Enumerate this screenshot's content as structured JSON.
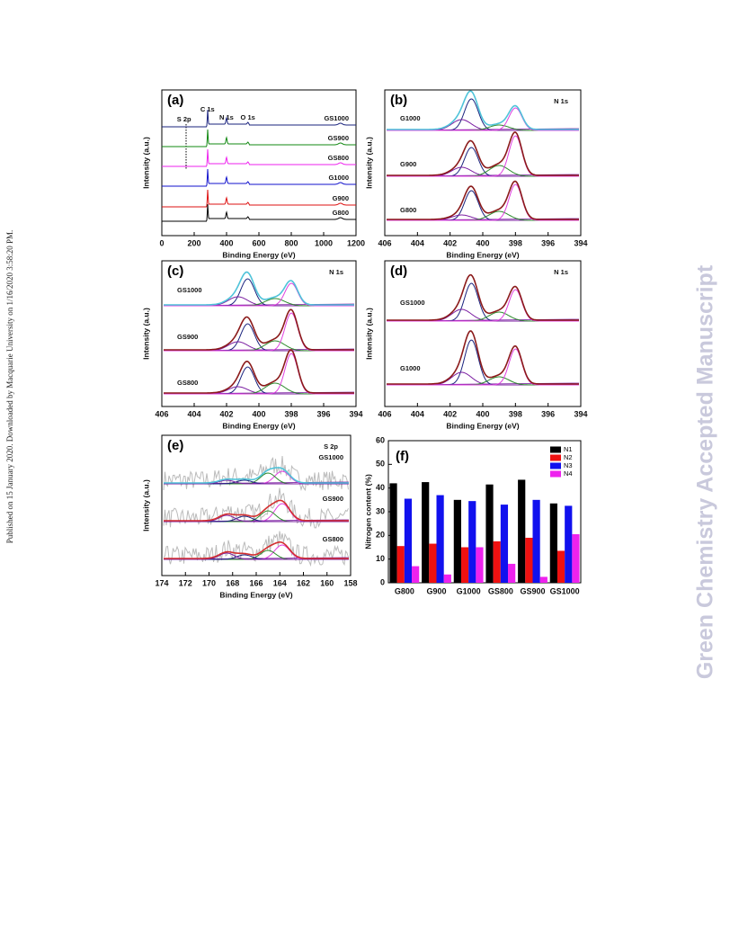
{
  "side_note": "Published on 15 January 2020. Downloaded by Macquarie University on 1/16/2020 3:58:20 PM.",
  "watermark": "Green Chemistry Accepted Manuscript",
  "panels": [
    {
      "label": "(a)",
      "xlabel": "Binding Energy (eV)",
      "ylabel": "Intensity (a.u.)",
      "xlim": [
        0,
        1200
      ],
      "xticks": [
        0,
        200,
        400,
        600,
        800,
        1000,
        1200
      ],
      "peaks": [
        "S 2p",
        "C 1s",
        "N 1s",
        "O 1s"
      ],
      "traces": [
        "GS1000",
        "GS900",
        "GS800",
        "G1000",
        "G900",
        "G800"
      ]
    },
    {
      "label": "(b)",
      "title": "N 1s",
      "xlabel": "Binding Energy (eV)",
      "ylabel": "Intensity (a.u.)",
      "xlim": [
        406,
        394
      ],
      "xticks": [
        406,
        404,
        402,
        400,
        398,
        396,
        394
      ],
      "traces": [
        "G1000",
        "G900",
        "G800"
      ]
    },
    {
      "label": "(c)",
      "title": "N 1s",
      "xlabel": "Binding Energy (eV)",
      "ylabel": "Intensity (a.u.)",
      "xlim": [
        406,
        394
      ],
      "xticks": [
        406,
        404,
        402,
        400,
        398,
        396,
        394
      ],
      "traces": [
        "GS1000",
        "GS900",
        "GS800"
      ]
    },
    {
      "label": "(d)",
      "title": "N 1s",
      "xlabel": "Binding Energy (eV)",
      "ylabel": "Intensity (a.u.)",
      "xlim": [
        406,
        394
      ],
      "xticks": [
        406,
        404,
        402,
        400,
        398,
        396,
        394
      ],
      "traces": [
        "GS1000",
        "G1000"
      ]
    },
    {
      "label": "(e)",
      "title": "S 2p",
      "xlabel": "Binding Energy (eV)",
      "ylabel": "Intensity (a.u.)",
      "xlim": [
        174,
        158
      ],
      "xticks": [
        174,
        172,
        170,
        168,
        166,
        164,
        162,
        160,
        158
      ],
      "traces": [
        "GS1000",
        "GS900",
        "GS800"
      ]
    }
  ],
  "bar_panel": {
    "type": "bar",
    "label": "(f)",
    "ylabel": "Nitrogen content (%)",
    "categories": [
      "G800",
      "G900",
      "G1000",
      "GS800",
      "GS900",
      "GS1000"
    ],
    "ylim": [
      0,
      60
    ],
    "yticks": [
      0,
      10,
      20,
      30,
      40,
      50,
      60
    ],
    "series": [
      {
        "name": "N1",
        "color": "#000000",
        "values": [
          42,
          42.5,
          35,
          41.5,
          43.5,
          33.5
        ]
      },
      {
        "name": "N2",
        "color": "#ee1111",
        "values": [
          15.5,
          16.5,
          15,
          17.5,
          19,
          13.5
        ]
      },
      {
        "name": "N3",
        "color": "#1111ee",
        "values": [
          35.5,
          37,
          34.5,
          33,
          35,
          32.5
        ]
      },
      {
        "name": "N4",
        "color": "#ee22ee",
        "values": [
          7,
          3.5,
          15,
          8,
          2.5,
          20.5
        ]
      }
    ]
  }
}
